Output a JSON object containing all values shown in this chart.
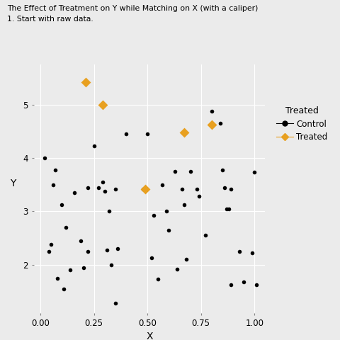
{
  "title_line1": "The Effect of Treatment on Y while Matching on X (with a caliper)",
  "title_line2": "1. Start with raw data.",
  "xlabel": "X",
  "ylabel": "Y",
  "xlim": [
    -0.03,
    1.05
  ],
  "ylim": [
    1.1,
    5.75
  ],
  "background_color": "#EBEBEB",
  "grid_color": "#FFFFFF",
  "control_color": "#000000",
  "treated_color": "#E8A020",
  "control_points": [
    [
      0.02,
      4.0
    ],
    [
      0.04,
      2.25
    ],
    [
      0.05,
      2.38
    ],
    [
      0.06,
      3.5
    ],
    [
      0.07,
      3.78
    ],
    [
      0.08,
      1.75
    ],
    [
      0.1,
      3.12
    ],
    [
      0.11,
      1.55
    ],
    [
      0.12,
      2.7
    ],
    [
      0.14,
      1.9
    ],
    [
      0.16,
      3.35
    ],
    [
      0.19,
      2.45
    ],
    [
      0.2,
      1.95
    ],
    [
      0.22,
      3.45
    ],
    [
      0.22,
      2.25
    ],
    [
      0.25,
      4.22
    ],
    [
      0.27,
      3.45
    ],
    [
      0.29,
      3.55
    ],
    [
      0.3,
      3.38
    ],
    [
      0.31,
      2.28
    ],
    [
      0.32,
      3.0
    ],
    [
      0.33,
      2.0
    ],
    [
      0.35,
      3.42
    ],
    [
      0.36,
      2.3
    ],
    [
      0.4,
      4.45
    ],
    [
      0.48,
      3.42
    ],
    [
      0.5,
      4.45
    ],
    [
      0.52,
      2.13
    ],
    [
      0.53,
      2.93
    ],
    [
      0.55,
      1.73
    ],
    [
      0.57,
      3.5
    ],
    [
      0.59,
      3.0
    ],
    [
      0.6,
      2.65
    ],
    [
      0.63,
      3.75
    ],
    [
      0.64,
      1.92
    ],
    [
      0.66,
      3.42
    ],
    [
      0.67,
      3.12
    ],
    [
      0.68,
      2.1
    ],
    [
      0.7,
      3.75
    ],
    [
      0.73,
      3.42
    ],
    [
      0.74,
      3.28
    ],
    [
      0.77,
      2.55
    ],
    [
      0.8,
      4.88
    ],
    [
      0.84,
      4.65
    ],
    [
      0.85,
      3.78
    ],
    [
      0.86,
      3.45
    ],
    [
      0.87,
      3.05
    ],
    [
      0.88,
      3.05
    ],
    [
      0.89,
      1.62
    ],
    [
      0.89,
      3.42
    ],
    [
      0.93,
      2.25
    ],
    [
      0.95,
      1.68
    ],
    [
      0.99,
      2.22
    ],
    [
      1.0,
      3.73
    ],
    [
      1.01,
      1.62
    ],
    [
      0.35,
      1.28
    ]
  ],
  "treated_points": [
    [
      0.21,
      5.42
    ],
    [
      0.29,
      5.0
    ],
    [
      0.49,
      3.42
    ],
    [
      0.67,
      4.48
    ],
    [
      0.8,
      4.62
    ]
  ],
  "xticks": [
    0.0,
    0.25,
    0.5,
    0.75,
    1.0
  ],
  "yticks": [
    2,
    3,
    4,
    5
  ],
  "legend_title": "Treated",
  "legend_control_label": "Control",
  "legend_treated_label": "Treated"
}
